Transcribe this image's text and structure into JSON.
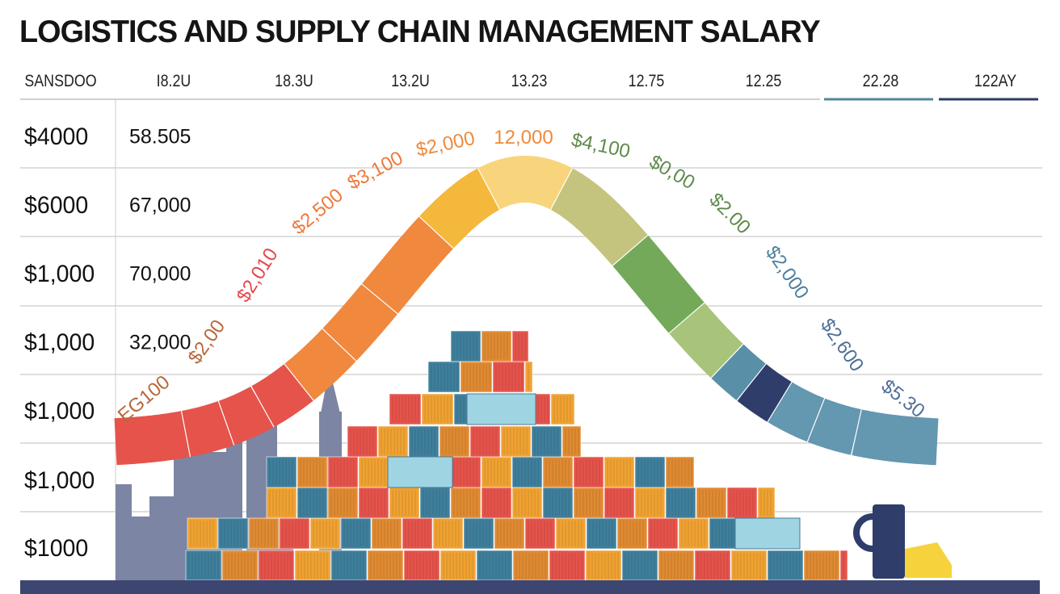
{
  "title": "LOGISTICS AND SUPPLY CHAIN MANAGEMENT SALARY",
  "header_labels": [
    "SANSDOO",
    "I8.2U",
    "18.3U",
    "13.2U",
    "13.23",
    "12.75",
    "12.25",
    "22.28",
    "122AY"
  ],
  "header_underline_colors": [
    "#d0d0d0",
    "#4f8a98",
    "#2e3c64"
  ],
  "y_labels": [
    "$4000",
    "$6000",
    "$1,000",
    "$1,000",
    "$1,000",
    "$1,000",
    "$1000"
  ],
  "y_labels_secondary": [
    "58.505",
    "67,000",
    "70,000",
    "32,000"
  ],
  "chart_data": {
    "type": "area",
    "title": "LOGISTICS AND SUPPLY CHAIN MANAGEMENT SALARY",
    "shape": "bell-curve band of colored segments over stacked shipping containers",
    "grid": true,
    "segment_labels": [
      {
        "text": "EG100",
        "color": "#b8683a"
      },
      {
        "text": "$2,00",
        "color": "#b8683a"
      },
      {
        "text": "$2,010",
        "color": "#e5484d"
      },
      {
        "text": "$2,500",
        "color": "#ee7a3c"
      },
      {
        "text": "$3,100",
        "color": "#ee7a3c"
      },
      {
        "text": "$2,000",
        "color": "#ee8a3c"
      },
      {
        "text": "12,000",
        "color": "#ee8a3c"
      },
      {
        "text": "$4,100",
        "color": "#5e8a4a"
      },
      {
        "text": "$0,00",
        "color": "#5e8a4a"
      },
      {
        "text": "$2.00",
        "color": "#5e8a4a"
      },
      {
        "text": "$2,000",
        "color": "#4f7fa0"
      },
      {
        "text": "$2,600",
        "color": "#4f6f98"
      },
      {
        "text": "$5.30",
        "color": "#4f6f98"
      }
    ],
    "segment_colors": [
      "#e5534b",
      "#e5534b",
      "#e5534b",
      "#e5534b",
      "#f0883e",
      "#f0883e",
      "#f0883e",
      "#f4b83c",
      "#f8d57c",
      "#c5c47f",
      "#74a95a",
      "#a8c47a",
      "#5a8fa8",
      "#2f3d6b",
      "#6497b0",
      "#6497b0",
      "#6497b0"
    ]
  }
}
